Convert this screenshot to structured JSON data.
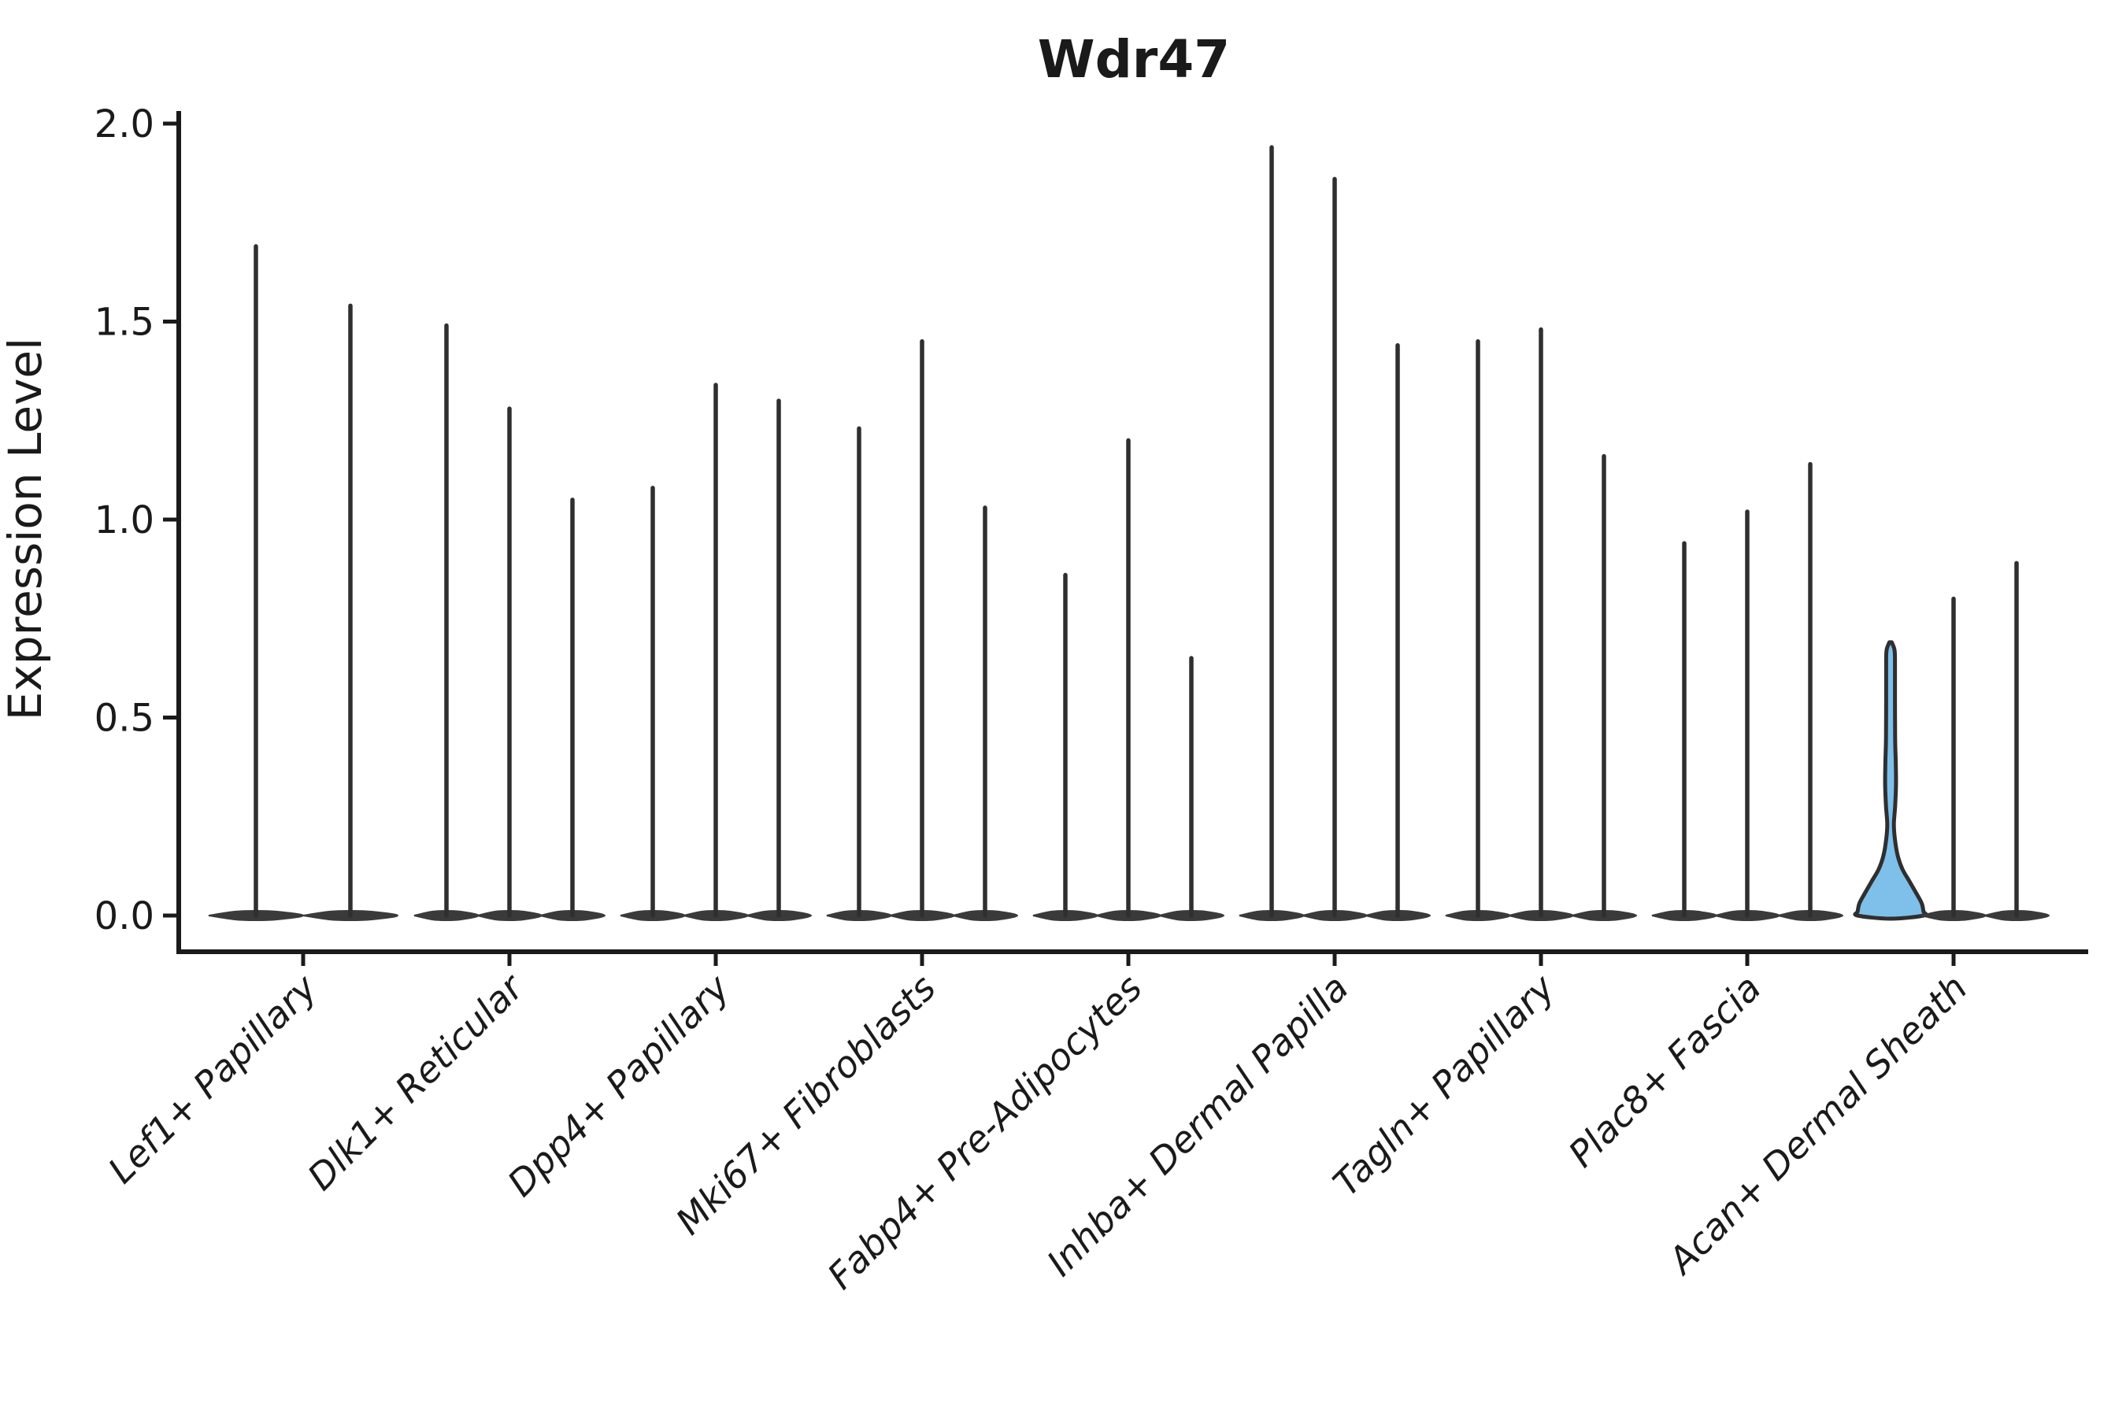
{
  "figure": {
    "title": "Wdr47",
    "background": "#FFFFFF"
  },
  "chart_data": {
    "type": "violin",
    "title": "Wdr47",
    "xlabel": "",
    "ylabel": "Expression Level",
    "ylim": [
      0,
      2.0
    ],
    "yticks": [
      0.0,
      0.5,
      1.0,
      1.5,
      2.0
    ],
    "ytick_labels": [
      "0.0",
      "0.5",
      "1.0",
      "1.5",
      "2.0"
    ],
    "grid": false,
    "legend": "none",
    "categories": [
      "Lef1+ Papillary",
      "Dlk1+ Reticular",
      "Dpp4+ Papillary",
      "Mki67+ Fibroblasts",
      "Fabp4+ Pre-Adipocytes",
      "Inhba+ Dermal Papilla",
      "Tagln+ Papillary",
      "Plac8+ Fascia",
      "Acan+ Dermal Sheath"
    ],
    "series": [
      {
        "category": "Lef1+ Papillary",
        "violin_max_values": [
          1.69,
          1.54
        ]
      },
      {
        "category": "Dlk1+ Reticular",
        "violin_max_values": [
          1.49,
          1.28,
          1.05
        ]
      },
      {
        "category": "Dpp4+ Papillary",
        "violin_max_values": [
          1.08,
          1.34,
          1.3
        ]
      },
      {
        "category": "Mki67+ Fibroblasts",
        "violin_max_values": [
          1.23,
          1.45,
          1.03
        ]
      },
      {
        "category": "Fabp4+ Pre-Adipocytes",
        "violin_max_values": [
          0.86,
          1.2,
          0.65
        ]
      },
      {
        "category": "Inhba+ Dermal Papilla",
        "violin_max_values": [
          1.94,
          1.86,
          1.44
        ]
      },
      {
        "category": "Tagln+ Papillary",
        "violin_max_values": [
          1.45,
          1.48,
          1.16
        ]
      },
      {
        "category": "Plac8+ Fascia",
        "violin_max_values": [
          0.94,
          1.02,
          1.14
        ]
      },
      {
        "category": "Acan+ Dermal Sheath",
        "violin_max_values": [
          0.69,
          0.8,
          0.89
        ]
      }
    ],
    "highlighted_violin": {
      "category": "Acan+ Dermal Sheath",
      "index_in_category": 0,
      "max": 0.69,
      "fill_color": "#7EC0EA",
      "note": "only filled/wide violin; broad density bell near 0, pinch at ~0.2, thin stem to 0.69"
    },
    "distribution_note": "all other violins collapse to a flat dark lens at 0 with a thin spike up to the max value"
  },
  "style": {
    "accent_blue": "#7EC0EA",
    "violin_line_color": "#2F2F2F",
    "violin_base_fill": "#3A3A3A",
    "axis_color": "#1A1A1A",
    "background": "#FFFFFF"
  }
}
